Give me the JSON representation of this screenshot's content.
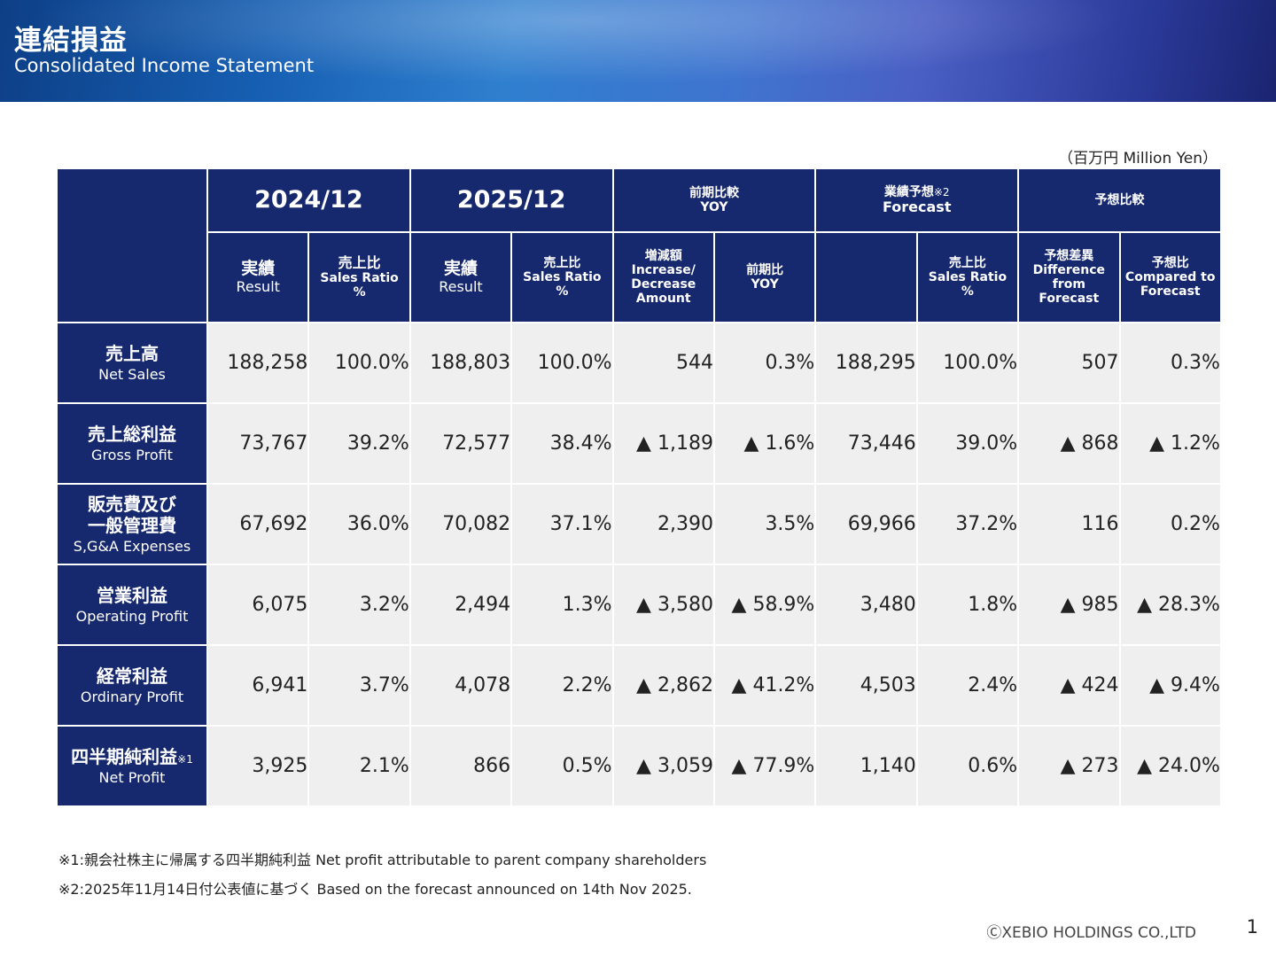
{
  "header": {
    "title_jp": "連結損益",
    "title_en": "Consolidated Income Statement"
  },
  "unit_label": "（百万円 Million Yen）",
  "columns": {
    "fy2024": "2024/12",
    "fy2025": "2025/12",
    "yoy_group_jp": "前期比較",
    "yoy_group_en": "YOY",
    "forecast_group_jp": "業績予想",
    "forecast_group_note": "※2",
    "forecast_group_en": "Forecast",
    "vs_forecast_group_jp": "予想比較",
    "result_jp": "実績",
    "result_en": "Result",
    "sales_ratio_jp": "売上比",
    "sales_ratio_en": "Sales Ratio",
    "sales_ratio_pct": "%",
    "inc_dec_jp": "増減額",
    "inc_dec_en1": "Increase/",
    "inc_dec_en2": "Decrease",
    "inc_dec_en3": "Amount",
    "yoy_jp": "前期比",
    "yoy_en": "YOY",
    "diff_jp": "予想差異",
    "diff_en1": "Difference from",
    "diff_en2": "Forecast",
    "cmp_jp": "予想比",
    "cmp_en1": "Compared to",
    "cmp_en2": "Forecast"
  },
  "rows": [
    {
      "label_jp": "売上高",
      "label_jp2": "",
      "label_en": "Net Sales",
      "note": "",
      "values": [
        "188,258",
        "100.0%",
        "188,803",
        "100.0%",
        "544",
        "0.3%",
        "188,295",
        "100.0%",
        "507",
        "0.3%"
      ]
    },
    {
      "label_jp": "売上総利益",
      "label_jp2": "",
      "label_en": "Gross Profit",
      "note": "",
      "values": [
        "73,767",
        "39.2%",
        "72,577",
        "38.4%",
        "▲ 1,189",
        "▲ 1.6%",
        "73,446",
        "39.0%",
        "▲ 868",
        "▲ 1.2%"
      ]
    },
    {
      "label_jp": "販売費及び",
      "label_jp2": "一般管理費",
      "label_en": "S,G&A Expenses",
      "note": "",
      "values": [
        "67,692",
        "36.0%",
        "70,082",
        "37.1%",
        "2,390",
        "3.5%",
        "69,966",
        "37.2%",
        "116",
        "0.2%"
      ]
    },
    {
      "label_jp": "営業利益",
      "label_jp2": "",
      "label_en": "Operating Profit",
      "note": "",
      "values": [
        "6,075",
        "3.2%",
        "2,494",
        "1.3%",
        "▲ 3,580",
        "▲ 58.9%",
        "3,480",
        "1.8%",
        "▲ 985",
        "▲ 28.3%"
      ]
    },
    {
      "label_jp": "経常利益",
      "label_jp2": "",
      "label_en": "Ordinary Profit",
      "note": "",
      "values": [
        "6,941",
        "3.7%",
        "4,078",
        "2.2%",
        "▲ 2,862",
        "▲ 41.2%",
        "4,503",
        "2.4%",
        "▲ 424",
        "▲ 9.4%"
      ]
    },
    {
      "label_jp": "四半期純利益",
      "label_jp2": "",
      "label_en": "Net Profit",
      "note": "※1",
      "values": [
        "3,925",
        "2.1%",
        "866",
        "0.5%",
        "▲ 3,059",
        "▲ 77.9%",
        "1,140",
        "0.6%",
        "▲ 273",
        "▲ 24.0%"
      ]
    }
  ],
  "footnotes": {
    "note1": "※1:親会社株主に帰属する四半期純利益  Net profit attributable to parent company shareholders",
    "note2": "※2:2025年11月14日付公表値に基づく    Based on the forecast announced on 14th Nov 2025."
  },
  "footer": {
    "copyright": "ⒸXEBIO HOLDINGS CO.,LTD",
    "page_number": "1"
  }
}
